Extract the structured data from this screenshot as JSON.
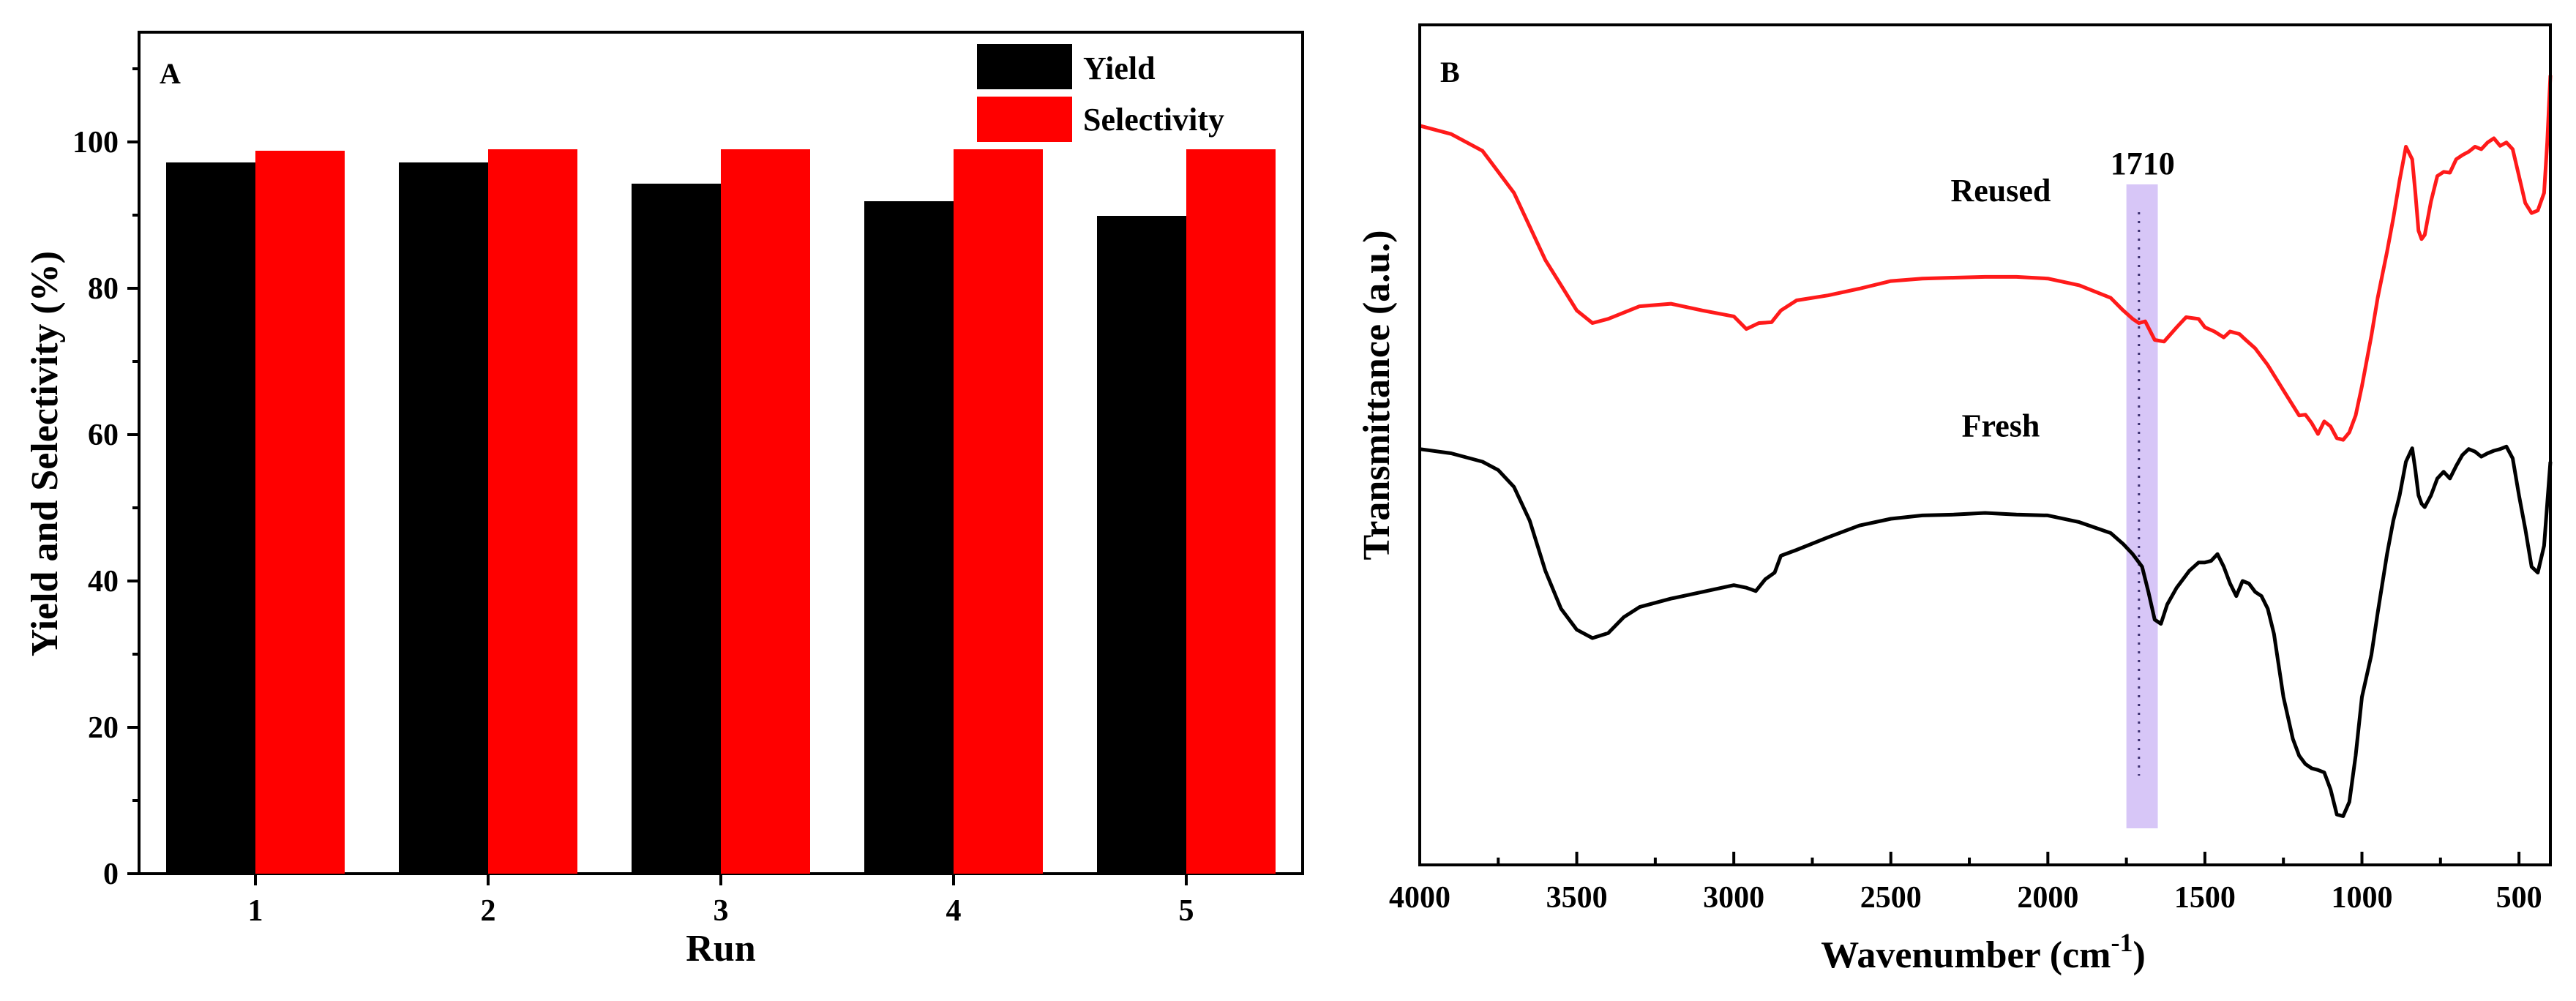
{
  "chart_data": [
    {
      "type": "bar",
      "panel_label": "A",
      "categories": [
        "1",
        "2",
        "3",
        "4",
        "5"
      ],
      "series": [
        {
          "name": "Yield",
          "color": "#000000",
          "values": [
            97.2,
            97.2,
            94.3,
            91.9,
            89.9
          ]
        },
        {
          "name": "Selectivity",
          "color": "#ff0000",
          "values": [
            98.8,
            99.0,
            99.0,
            99.0,
            99.0
          ]
        }
      ],
      "xlabel": "Run",
      "ylabel": "Yield and Selectivity (%)",
      "ylim": [
        0,
        115
      ],
      "yticks": [
        0,
        20,
        40,
        60,
        80,
        100
      ],
      "legend": "top-right"
    },
    {
      "type": "line",
      "panel_label": "B",
      "xlabel": "Wavenumber (cm-1)",
      "xlabel_main": "Wavenumber (cm",
      "xlabel_sup": "-1",
      "xlabel_close": ")",
      "ylabel": "Transmittance (a.u.)",
      "xlim": [
        4000,
        400
      ],
      "ylim": [
        0,
        100
      ],
      "xticks": [
        4000,
        3500,
        3000,
        2500,
        2000,
        1500,
        1000,
        500
      ],
      "annotations": [
        {
          "text": "1710",
          "x": 1710,
          "band": [
            1750,
            1650
          ],
          "band_color": "#d7c6f7"
        }
      ],
      "series": [
        {
          "name": "Reused",
          "color": "#ff1a1a",
          "label_x": 2150,
          "label_y": 79,
          "points": [
            [
              4000,
              88
            ],
            [
              3900,
              87
            ],
            [
              3800,
              85
            ],
            [
              3700,
              80
            ],
            [
              3600,
              72
            ],
            [
              3500,
              66
            ],
            [
              3450,
              64.5
            ],
            [
              3400,
              65
            ],
            [
              3300,
              66.5
            ],
            [
              3200,
              66.8
            ],
            [
              3100,
              66
            ],
            [
              3000,
              65.3
            ],
            [
              2960,
              63.8
            ],
            [
              2920,
              64.5
            ],
            [
              2880,
              64.6
            ],
            [
              2850,
              66
            ],
            [
              2800,
              67.2
            ],
            [
              2700,
              67.8
            ],
            [
              2600,
              68.6
            ],
            [
              2500,
              69.5
            ],
            [
              2400,
              69.8
            ],
            [
              2300,
              69.9
            ],
            [
              2200,
              70
            ],
            [
              2100,
              70
            ],
            [
              2000,
              69.8
            ],
            [
              1900,
              69
            ],
            [
              1800,
              67.5
            ],
            [
              1760,
              66
            ],
            [
              1730,
              65
            ],
            [
              1710,
              64.5
            ],
            [
              1690,
              64.7
            ],
            [
              1660,
              62.5
            ],
            [
              1630,
              62.3
            ],
            [
              1590,
              64
            ],
            [
              1560,
              65.2
            ],
            [
              1520,
              65
            ],
            [
              1500,
              64
            ],
            [
              1470,
              63.5
            ],
            [
              1440,
              62.8
            ],
            [
              1420,
              63.5
            ],
            [
              1390,
              63.2
            ],
            [
              1370,
              62.5
            ],
            [
              1340,
              61.5
            ],
            [
              1300,
              59.5
            ],
            [
              1250,
              56.5
            ],
            [
              1200,
              53.5
            ],
            [
              1180,
              53.6
            ],
            [
              1160,
              52.6
            ],
            [
              1140,
              51.3
            ],
            [
              1120,
              52.8
            ],
            [
              1100,
              52.2
            ],
            [
              1080,
              50.8
            ],
            [
              1060,
              50.6
            ],
            [
              1040,
              51.5
            ],
            [
              1020,
              53.5
            ],
            [
              1000,
              57
            ],
            [
              970,
              63
            ],
            [
              950,
              67.5
            ],
            [
              920,
              73
            ],
            [
              900,
              77
            ],
            [
              880,
              81.5
            ],
            [
              860,
              85.5
            ],
            [
              840,
              84
            ],
            [
              830,
              80
            ],
            [
              820,
              75.5
            ],
            [
              810,
              74.5
            ],
            [
              800,
              75
            ],
            [
              780,
              79
            ],
            [
              760,
              82
            ],
            [
              740,
              82.5
            ],
            [
              720,
              82.4
            ],
            [
              700,
              84
            ],
            [
              680,
              84.5
            ],
            [
              660,
              84.9
            ],
            [
              640,
              85.5
            ],
            [
              620,
              85.2
            ],
            [
              600,
              86
            ],
            [
              580,
              86.5
            ],
            [
              560,
              85.6
            ],
            [
              540,
              86
            ],
            [
              520,
              85.2
            ],
            [
              500,
              82
            ],
            [
              480,
              78.8
            ],
            [
              460,
              77.6
            ],
            [
              440,
              77.9
            ],
            [
              420,
              80
            ],
            [
              410,
              86
            ],
            [
              400,
              94
            ]
          ]
        },
        {
          "name": "Fresh",
          "color": "#000000",
          "label_x": 2150,
          "label_y": 51,
          "points": [
            [
              4000,
              49.5
            ],
            [
              3900,
              49
            ],
            [
              3800,
              48
            ],
            [
              3750,
              47
            ],
            [
              3700,
              45
            ],
            [
              3650,
              41
            ],
            [
              3600,
              35
            ],
            [
              3550,
              30.5
            ],
            [
              3500,
              28
            ],
            [
              3450,
              27
            ],
            [
              3400,
              27.6
            ],
            [
              3350,
              29.5
            ],
            [
              3300,
              30.7
            ],
            [
              3200,
              31.7
            ],
            [
              3100,
              32.5
            ],
            [
              3000,
              33.3
            ],
            [
              2960,
              33
            ],
            [
              2930,
              32.6
            ],
            [
              2900,
              34
            ],
            [
              2870,
              34.8
            ],
            [
              2850,
              36.8
            ],
            [
              2800,
              37.5
            ],
            [
              2700,
              39
            ],
            [
              2600,
              40.4
            ],
            [
              2500,
              41.2
            ],
            [
              2400,
              41.6
            ],
            [
              2300,
              41.7
            ],
            [
              2200,
              41.9
            ],
            [
              2100,
              41.7
            ],
            [
              2000,
              41.6
            ],
            [
              1900,
              40.8
            ],
            [
              1800,
              39.5
            ],
            [
              1760,
              38.2
            ],
            [
              1730,
              37
            ],
            [
              1700,
              35.5
            ],
            [
              1680,
              32.5
            ],
            [
              1660,
              29.2
            ],
            [
              1640,
              28.7
            ],
            [
              1620,
              31
            ],
            [
              1590,
              33
            ],
            [
              1550,
              35
            ],
            [
              1520,
              36
            ],
            [
              1500,
              36
            ],
            [
              1480,
              36.2
            ],
            [
              1460,
              37
            ],
            [
              1440,
              35.5
            ],
            [
              1420,
              33.5
            ],
            [
              1400,
              32
            ],
            [
              1380,
              33.8
            ],
            [
              1360,
              33.5
            ],
            [
              1340,
              32.5
            ],
            [
              1320,
              32
            ],
            [
              1300,
              30.5
            ],
            [
              1280,
              27.5
            ],
            [
              1250,
              20
            ],
            [
              1220,
              15
            ],
            [
              1200,
              13
            ],
            [
              1180,
              12
            ],
            [
              1160,
              11.5
            ],
            [
              1140,
              11.3
            ],
            [
              1120,
              11
            ],
            [
              1100,
              9
            ],
            [
              1080,
              6
            ],
            [
              1060,
              5.8
            ],
            [
              1040,
              7.5
            ],
            [
              1020,
              13
            ],
            [
              1000,
              20
            ],
            [
              970,
              25
            ],
            [
              950,
              30
            ],
            [
              920,
              37
            ],
            [
              900,
              41
            ],
            [
              880,
              44
            ],
            [
              860,
              48
            ],
            [
              840,
              49.6
            ],
            [
              830,
              47
            ],
            [
              820,
              44
            ],
            [
              810,
              43
            ],
            [
              800,
              42.6
            ],
            [
              780,
              44
            ],
            [
              760,
              46
            ],
            [
              740,
              46.8
            ],
            [
              720,
              46
            ],
            [
              700,
              47.5
            ],
            [
              680,
              48.8
            ],
            [
              660,
              49.5
            ],
            [
              640,
              49.2
            ],
            [
              620,
              48.6
            ],
            [
              600,
              49
            ],
            [
              580,
              49.3
            ],
            [
              560,
              49.5
            ],
            [
              540,
              49.8
            ],
            [
              520,
              48.4
            ],
            [
              500,
              44
            ],
            [
              480,
              40
            ],
            [
              460,
              35.5
            ],
            [
              440,
              34.8
            ],
            [
              420,
              38
            ],
            [
              410,
              43
            ],
            [
              400,
              48
            ]
          ]
        }
      ]
    }
  ]
}
